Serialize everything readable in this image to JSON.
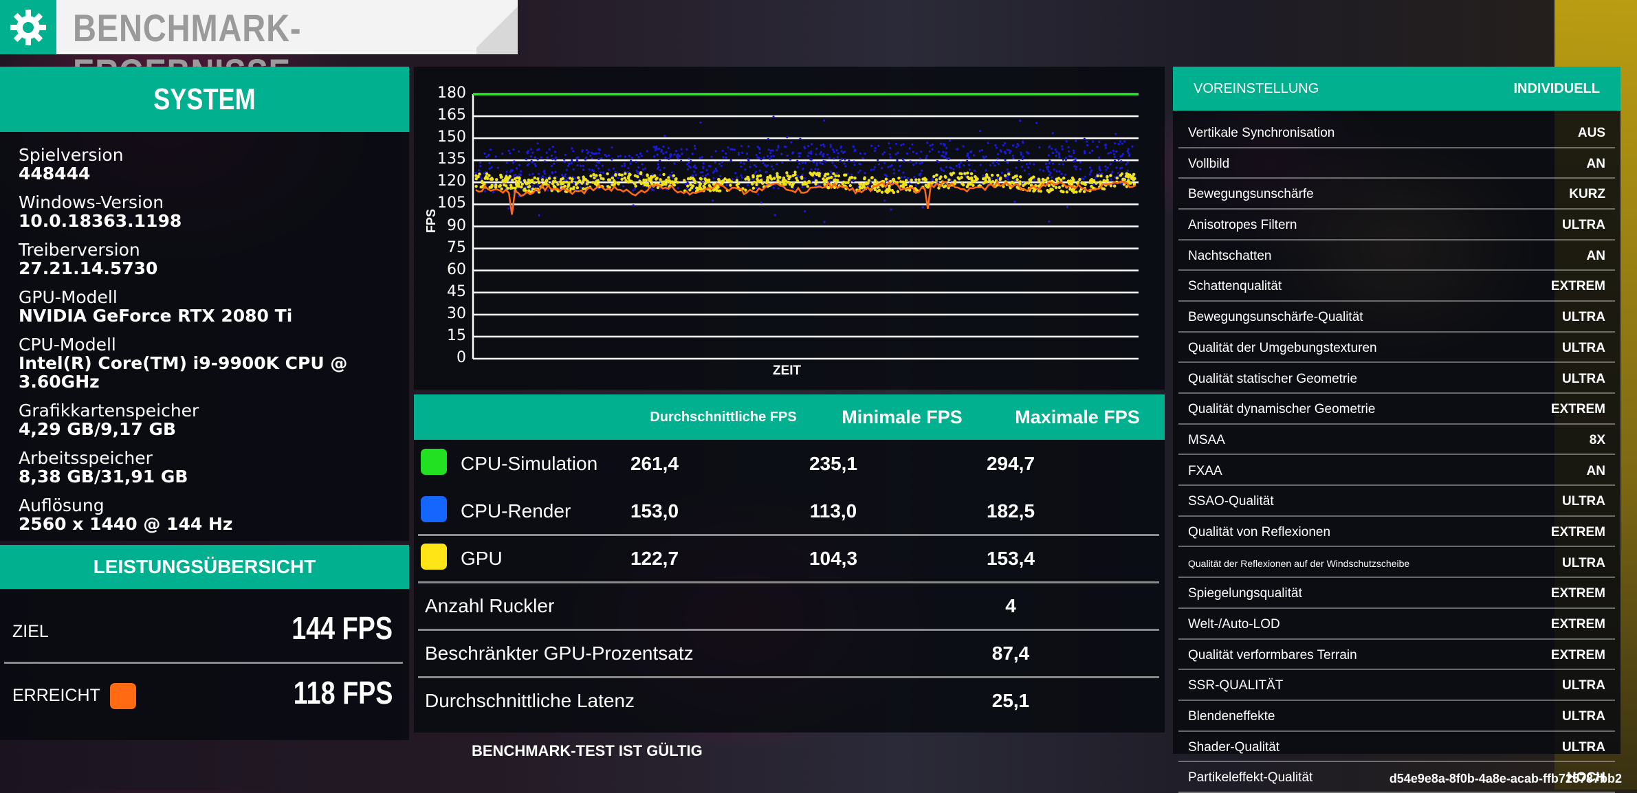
{
  "header": {
    "title": "BENCHMARK-ERGEBNISSE"
  },
  "system": {
    "title": "SYSTEM",
    "items": [
      {
        "label": "Spielversion",
        "value": "448444"
      },
      {
        "label": "Windows-Version",
        "value": "10.0.18363.1198"
      },
      {
        "label": "Treiberversion",
        "value": "27.21.14.5730"
      },
      {
        "label": "GPU-Modell",
        "value": "NVIDIA GeForce RTX 2080 Ti"
      },
      {
        "label": "CPU-Modell",
        "value": "Intel(R) Core(TM) i9-9900K CPU @ 3.60GHz"
      },
      {
        "label": "Grafikkartenspeicher",
        "value": "4,29 GB/9,17 GB"
      },
      {
        "label": "Arbeitsspeicher",
        "value": "8,38 GB/31,91 GB"
      },
      {
        "label": "Auflösung",
        "value": "2560 x 1440 @ 144 Hz"
      }
    ]
  },
  "overview": {
    "title": "LEISTUNGSÜBERSICHT",
    "target_label": "ZIEL",
    "target_value": "144 FPS",
    "achieved_label": "ERREICHT",
    "achieved_value": "118 FPS",
    "achieved_color": "#ff6a13"
  },
  "chart_data": {
    "type": "scatter",
    "xlabel": "ZEIT",
    "ylabel": "FPS",
    "ylim": [
      0,
      180
    ],
    "yticks": [
      180,
      165,
      150,
      135,
      120,
      105,
      90,
      75,
      60,
      45,
      30,
      15,
      0
    ],
    "grid": true,
    "series": [
      {
        "name": "CPU-Simulation",
        "color": "#2eea2e",
        "kind": "line",
        "mean": 180
      },
      {
        "name": "CPU-Render",
        "color": "#1a1ad8",
        "kind": "scatter",
        "mean": 132,
        "range": [
          92,
          165
        ]
      },
      {
        "name": "GPU",
        "color": "#f0e21a",
        "kind": "scatter",
        "mean": 120,
        "range": [
          110,
          130
        ]
      },
      {
        "name": "ERREICHT",
        "color": "#ff6a13",
        "kind": "line",
        "mean": 114,
        "range": [
          95,
          120
        ]
      }
    ]
  },
  "stats": {
    "headers": [
      "Durchschnittliche FPS",
      "Minimale FPS",
      "Maximale FPS"
    ],
    "rows": [
      {
        "name": "CPU-Simulation",
        "color": "#22e022",
        "avg": "261,4",
        "min": "235,1",
        "max": "294,7"
      },
      {
        "name": "CPU-Render",
        "color": "#1566ff",
        "avg": "153,0",
        "min": "113,0",
        "max": "182,5"
      },
      {
        "name": "GPU",
        "color": "#ffe515",
        "avg": "122,7",
        "min": "104,3",
        "max": "153,4"
      }
    ],
    "extra": [
      {
        "name": "Anzahl Ruckler",
        "value": "4"
      },
      {
        "name": "Beschränkter GPU-Prozentsatz",
        "value": "87,4"
      },
      {
        "name": "Durchschnittliche Latenz",
        "value": "25,1"
      }
    ],
    "valid_text": "BENCHMARK-TEST IST GÜLTIG"
  },
  "settings": {
    "header_label": "VOREINSTELLUNG",
    "header_value": "INDIVIDUELL",
    "rows": [
      {
        "k": "Vertikale Synchronisation",
        "v": "AUS"
      },
      {
        "k": "Vollbild",
        "v": "AN"
      },
      {
        "k": "Bewegungsunschärfe",
        "v": "KURZ"
      },
      {
        "k": "Anisotropes Filtern",
        "v": "ULTRA"
      },
      {
        "k": "Nachtschatten",
        "v": "AN"
      },
      {
        "k": "Schattenqualität",
        "v": "EXTREM"
      },
      {
        "k": "Bewegungsunschärfe-Qualität",
        "v": "ULTRA"
      },
      {
        "k": "Qualität der Umgebungstexturen",
        "v": "ULTRA"
      },
      {
        "k": "Qualität statischer Geometrie",
        "v": "ULTRA"
      },
      {
        "k": "Qualität dynamischer Geometrie",
        "v": "EXTREM"
      },
      {
        "k": "MSAA",
        "v": "8X"
      },
      {
        "k": "FXAA",
        "v": "AN"
      },
      {
        "k": "SSAO-Qualität",
        "v": "ULTRA"
      },
      {
        "k": "Qualität von Reflexionen",
        "v": "EXTREM"
      },
      {
        "k": "Qualität der Reflexionen auf der Windschutzscheibe",
        "v": "ULTRA"
      },
      {
        "k": "Spiegelungsqualität",
        "v": "EXTREM"
      },
      {
        "k": "Welt-/Auto-LOD",
        "v": "EXTREM"
      },
      {
        "k": "Qualität verformbares Terrain",
        "v": "EXTREM"
      },
      {
        "k": "SSR-QUALITÄT",
        "v": "ULTRA"
      },
      {
        "k": "Blendeneffekte",
        "v": "ULTRA"
      },
      {
        "k": "Shader-Qualität",
        "v": "ULTRA"
      },
      {
        "k": "Partikeleffekt-Qualität",
        "v": "HOCH"
      }
    ]
  },
  "footer": {
    "id": "d54e9e8a-8f0b-4a8e-acab-ffb725787bb2"
  }
}
